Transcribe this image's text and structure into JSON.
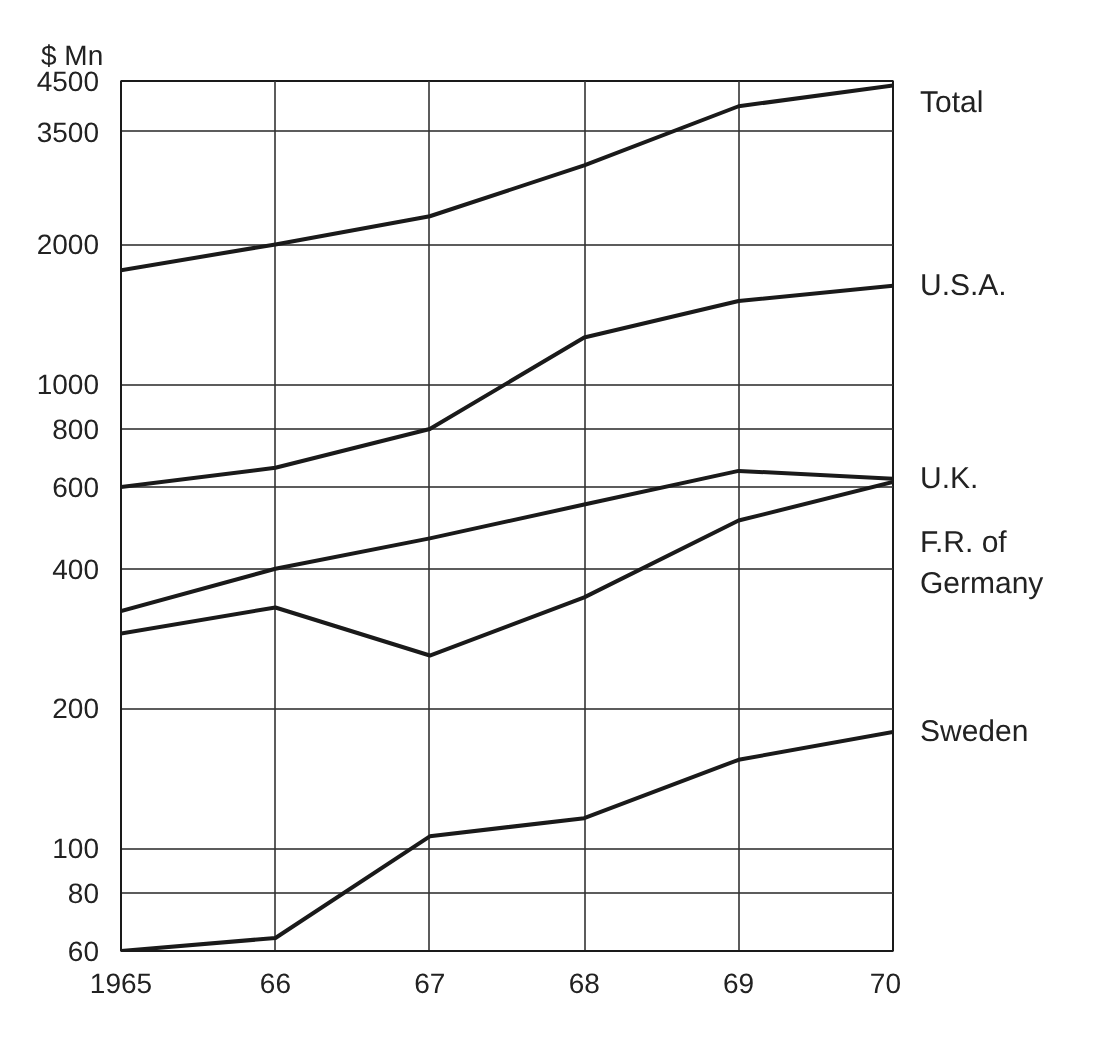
{
  "chart_data": {
    "type": "line",
    "ylabel": "$ Mn",
    "x": [
      1965,
      1966,
      1967,
      1968,
      1969,
      1970
    ],
    "xlim": [
      1965,
      1970
    ],
    "xticks": [
      {
        "value": 1965,
        "label": "1965"
      },
      {
        "value": 1966,
        "label": "66"
      },
      {
        "value": 1967,
        "label": "67"
      },
      {
        "value": 1968,
        "label": "68"
      },
      {
        "value": 1969,
        "label": "69"
      },
      {
        "value": 1970,
        "label": "70"
      }
    ],
    "ylim": [
      60,
      4500
    ],
    "yticks": [
      60,
      80,
      100,
      200,
      400,
      600,
      800,
      1000,
      2000,
      3500,
      4500
    ],
    "log": true,
    "grid": true,
    "marker": "none",
    "line_style": "solid",
    "series": [
      {
        "name": "Total",
        "color": "#1a1a1a",
        "values": [
          1760,
          2000,
          2300,
          2960,
          3970,
          4400
        ]
      },
      {
        "name": "U.S.A.",
        "color": "#1a1a1a",
        "values": [
          600,
          660,
          800,
          1260,
          1510,
          1630
        ]
      },
      {
        "name": "U.K.",
        "color": "#1a1a1a",
        "values": [
          324,
          400,
          465,
          550,
          650,
          625
        ]
      },
      {
        "name": "F.R. of Germany",
        "color": "#1a1a1a",
        "values": [
          290,
          330,
          260,
          347,
          508,
          615
        ]
      },
      {
        "name": "Sweden",
        "color": "#1a1a1a",
        "values": [
          60,
          64,
          106,
          116,
          155,
          178
        ]
      }
    ]
  }
}
